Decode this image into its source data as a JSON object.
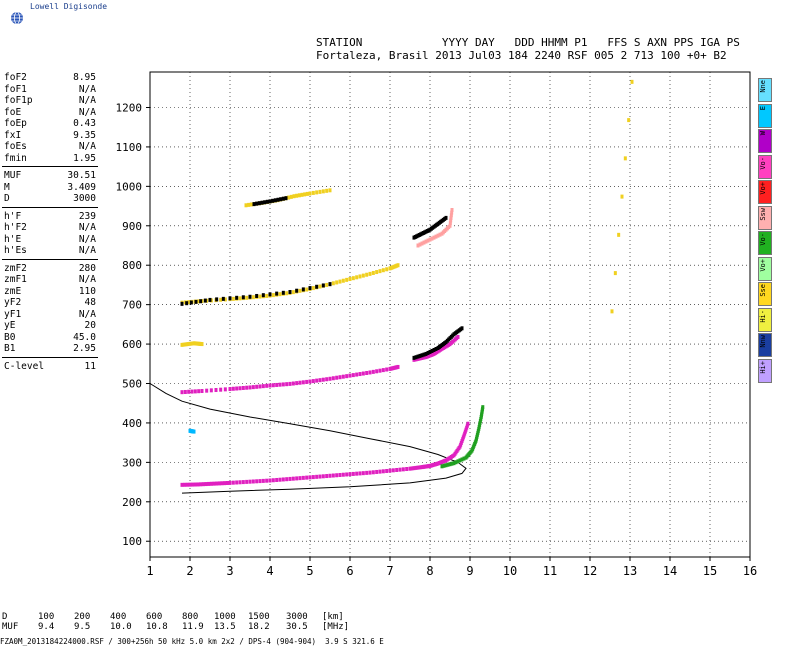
{
  "logo": {
    "text": "Lowell Digisonde",
    "icon": "globe-icon"
  },
  "header": {
    "line1": "STATION            YYYY DAY   DDD HHMM P1   FFS S AXN PPS IGA PS",
    "line2": "Fortaleza, Brasil 2013 Jul03 184 2240 RSF 005 2 713 100 +0+ B2"
  },
  "params": {
    "group1": [
      {
        "label": "foF2",
        "value": "8.95"
      },
      {
        "label": "foF1",
        "value": "N/A"
      },
      {
        "label": "foF1p",
        "value": "N/A"
      },
      {
        "label": "foE",
        "value": "N/A"
      },
      {
        "label": "foEp",
        "value": "0.43"
      },
      {
        "label": "fxI",
        "value": "9.35"
      },
      {
        "label": "foEs",
        "value": "N/A"
      },
      {
        "label": "fmin",
        "value": "1.95"
      }
    ],
    "group2": [
      {
        "label": "MUF",
        "value": "30.51"
      },
      {
        "label": "M",
        "value": "3.409"
      },
      {
        "label": "D",
        "value": "3000"
      }
    ],
    "group3": [
      {
        "label": "h'F",
        "value": "239"
      },
      {
        "label": "h'F2",
        "value": "N/A"
      },
      {
        "label": "h'E",
        "value": "N/A"
      },
      {
        "label": "h'Es",
        "value": "N/A"
      }
    ],
    "group4": [
      {
        "label": "zmF2",
        "value": "280"
      },
      {
        "label": "zmF1",
        "value": "N/A"
      },
      {
        "label": "zmE",
        "value": "110"
      },
      {
        "label": "yF2",
        "value": "48"
      },
      {
        "label": "yF1",
        "value": "N/A"
      },
      {
        "label": "yE",
        "value": "20"
      },
      {
        "label": "B0",
        "value": "45.0"
      },
      {
        "label": "B1",
        "value": "2.95"
      }
    ],
    "group5": [
      {
        "label": "C-level",
        "value": "11"
      }
    ]
  },
  "legend": [
    {
      "label": "Nne",
      "color": "#66e0ff"
    },
    {
      "label": "E",
      "color": "#00c8ff"
    },
    {
      "label": "W",
      "color": "#b000c8"
    },
    {
      "label": "Vo-",
      "color": "#ff40c0"
    },
    {
      "label": "Vo+",
      "color": "#ff2020"
    },
    {
      "label": "Ssw",
      "color": "#ffb0b0"
    },
    {
      "label": "Vo-",
      "color": "#20b020"
    },
    {
      "label": "Vo+",
      "color": "#a0ffa0"
    },
    {
      "label": "Sse",
      "color": "#ffd820"
    },
    {
      "label": "Hi-",
      "color": "#f0f040"
    },
    {
      "label": "Nnw",
      "color": "#1a3ea0"
    },
    {
      "label": "Hi+",
      "color": "#c0a0ff"
    }
  ],
  "bottom": {
    "row_d_label": "D",
    "row_muf_label": "MUF",
    "d_values": [
      "100",
      "200",
      "400",
      "600",
      "800",
      "1000",
      "1500",
      "3000"
    ],
    "muf_values": [
      "9.4",
      "9.5",
      "10.0",
      "10.8",
      "11.9",
      "13.5",
      "18.2",
      "30.5"
    ],
    "d_unit": "[km]",
    "muf_unit": "[MHz]"
  },
  "footer": "FZA0M_2013184224000.RSF / 300+256h 50 kHz 5.0 km 2x2 / DPS-4 (904-904)  3.9 S 321.6 E",
  "chart_data": {
    "type": "scatter",
    "xlim": [
      1,
      16
    ],
    "ylim": [
      60,
      1290
    ],
    "xticks": [
      1,
      2,
      3,
      4,
      5,
      6,
      7,
      8,
      9,
      10,
      11,
      12,
      13,
      14,
      15,
      16
    ],
    "yticks": [
      100,
      200,
      300,
      400,
      500,
      600,
      700,
      800,
      900,
      1000,
      1100,
      1200
    ],
    "grid": true,
    "series": [
      {
        "color": "#e020c0",
        "points": [
          [
            1.8,
            243
          ],
          [
            2.2,
            244
          ],
          [
            2.6,
            246
          ],
          [
            3.0,
            248
          ],
          [
            3.5,
            251
          ],
          [
            4.0,
            254
          ],
          [
            4.5,
            258
          ],
          [
            5.0,
            262
          ],
          [
            5.5,
            266
          ],
          [
            6.0,
            270
          ],
          [
            6.5,
            274
          ],
          [
            7.0,
            279
          ],
          [
            7.5,
            284
          ],
          [
            7.8,
            288
          ],
          [
            8.0,
            291
          ],
          [
            8.2,
            297
          ],
          [
            8.4,
            305
          ],
          [
            8.6,
            318
          ],
          [
            8.75,
            340
          ],
          [
            8.85,
            368
          ],
          [
            8.95,
            398
          ]
        ]
      },
      {
        "color": "#20a020",
        "points": [
          [
            8.3,
            290
          ],
          [
            8.6,
            298
          ],
          [
            8.9,
            312
          ],
          [
            9.05,
            330
          ],
          [
            9.15,
            355
          ],
          [
            9.22,
            385
          ],
          [
            9.28,
            415
          ],
          [
            9.32,
            440
          ]
        ]
      },
      {
        "color": "#e020c0",
        "points": [
          [
            1.8,
            478
          ],
          [
            2.3,
            481
          ],
          [
            3.0,
            486
          ],
          [
            3.5,
            490
          ],
          [
            4.0,
            495
          ],
          [
            4.5,
            499
          ],
          [
            5.0,
            505
          ],
          [
            5.5,
            512
          ],
          [
            6.0,
            520
          ],
          [
            6.5,
            528
          ],
          [
            7.0,
            537
          ],
          [
            7.2,
            542
          ]
        ]
      },
      {
        "color": "#e020c0",
        "points": [
          [
            7.6,
            560
          ],
          [
            7.9,
            567
          ],
          [
            8.1,
            575
          ],
          [
            8.3,
            588
          ],
          [
            8.5,
            600
          ],
          [
            8.7,
            618
          ]
        ]
      },
      {
        "color": "#000000",
        "points": [
          [
            7.6,
            565
          ],
          [
            7.9,
            575
          ],
          [
            8.2,
            590
          ],
          [
            8.4,
            605
          ],
          [
            8.6,
            625
          ],
          [
            8.8,
            640
          ]
        ]
      },
      {
        "color": "#f0d020",
        "points": [
          [
            1.8,
            705
          ],
          [
            2.3,
            709
          ],
          [
            3.0,
            714
          ],
          [
            3.5,
            718
          ],
          [
            4.0,
            723
          ],
          [
            4.5,
            730
          ],
          [
            5.0,
            740
          ],
          [
            5.5,
            752
          ],
          [
            6.0,
            765
          ],
          [
            6.5,
            778
          ],
          [
            7.0,
            792
          ],
          [
            7.2,
            800
          ]
        ]
      },
      {
        "color": "#000000",
        "points": [
          [
            1.8,
            702
          ],
          [
            2.5,
            712
          ],
          [
            3.5,
            720
          ],
          [
            4.5,
            732
          ],
          [
            5.5,
            752
          ]
        ]
      },
      {
        "color": "#000000",
        "points": [
          [
            7.6,
            870
          ],
          [
            7.8,
            880
          ],
          [
            8.0,
            890
          ],
          [
            8.2,
            905
          ],
          [
            8.4,
            920
          ]
        ]
      },
      {
        "color": "#ffa0a0",
        "points": [
          [
            7.7,
            850
          ],
          [
            8.0,
            865
          ],
          [
            8.3,
            880
          ],
          [
            8.5,
            900
          ],
          [
            8.55,
            940
          ]
        ]
      },
      {
        "color": "#f0d020",
        "points": [
          [
            3.4,
            952
          ],
          [
            3.8,
            958
          ],
          [
            4.2,
            965
          ],
          [
            4.6,
            975
          ],
          [
            5.0,
            982
          ],
          [
            5.5,
            990
          ]
        ]
      },
      {
        "color": "#000000",
        "points": [
          [
            3.6,
            955
          ],
          [
            4.0,
            962
          ],
          [
            4.4,
            970
          ]
        ]
      },
      {
        "color": "#f0d020",
        "points": [
          [
            1.8,
            598
          ],
          [
            2.1,
            602
          ],
          [
            2.3,
            600
          ]
        ]
      },
      {
        "color": "#00b8ff",
        "points": [
          [
            2.0,
            380
          ],
          [
            2.1,
            378
          ]
        ]
      },
      {
        "color": "#f0d020",
        "points": [
          [
            12.55,
            683
          ],
          [
            13.05,
            1265
          ]
        ]
      }
    ],
    "profile_curve": [
      [
        1.0,
        500
      ],
      [
        1.4,
        475
      ],
      [
        1.8,
        455
      ],
      [
        2.5,
        435
      ],
      [
        3.5,
        415
      ],
      [
        4.5,
        398
      ],
      [
        5.5,
        380
      ],
      [
        6.5,
        360
      ],
      [
        7.5,
        340
      ],
      [
        8.2,
        320
      ],
      [
        8.7,
        300
      ],
      [
        8.9,
        285
      ],
      [
        8.8,
        272
      ],
      [
        8.4,
        260
      ],
      [
        7.5,
        248
      ],
      [
        6.0,
        238
      ],
      [
        4.5,
        232
      ],
      [
        3.0,
        227
      ],
      [
        1.8,
        222
      ]
    ]
  }
}
